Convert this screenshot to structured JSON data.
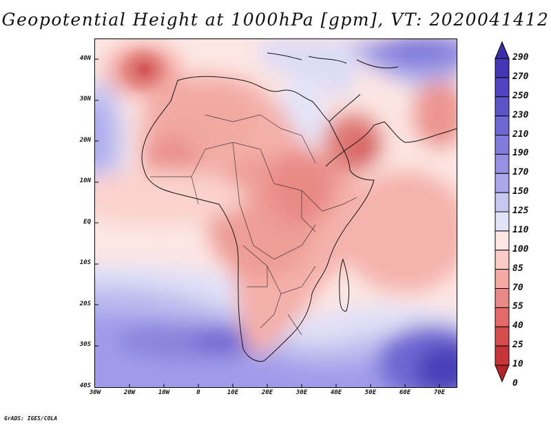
{
  "title": "Geopotential Height at 1000hPa [gpm], VT: 2020041412",
  "credit": "GrADS: IGES/COLA",
  "map": {
    "region": "Africa and Middle East",
    "variable": "Geopotential Height",
    "level": "1000hPa",
    "units": "gpm",
    "valid_time": "2020041412",
    "lon_range": [
      -30,
      75
    ],
    "lat_range": [
      -40,
      45
    ],
    "lat_ticks": [
      "40N",
      "30N",
      "20N",
      "10N",
      "EQ",
      "10S",
      "20S",
      "30S",
      "40S"
    ],
    "lon_ticks": [
      "30W",
      "20W",
      "10W",
      "0",
      "10E",
      "20E",
      "30E",
      "40E",
      "50E",
      "60E",
      "70E"
    ]
  },
  "colorbar": {
    "labels": [
      "290",
      "270",
      "250",
      "230",
      "210",
      "190",
      "170",
      "150",
      "125",
      "110",
      "100",
      "85",
      "70",
      "55",
      "40",
      "25",
      "10",
      "0"
    ],
    "colors": [
      "#3a2fa6",
      "#4336b4",
      "#5044c0",
      "#5e56c8",
      "#6f68d2",
      "#817cdc",
      "#9590e2",
      "#aaa8ea",
      "#c7c7f2",
      "#e2e2f8",
      "#fde6e3",
      "#fbcbc6",
      "#f3aaa4",
      "#ea8a86",
      "#e06b69",
      "#d44c4e",
      "#c63638",
      "#b22428"
    ]
  }
}
